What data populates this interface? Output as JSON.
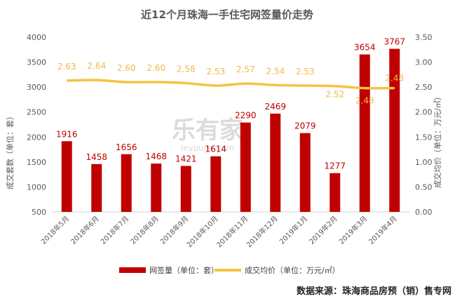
{
  "chart_data": {
    "type": "bar+line",
    "title": "近12个月珠海一手住宅网签量价走势",
    "categories": [
      "2018年5月",
      "2018年6月",
      "2018年7月",
      "2018年8月",
      "2018年9月",
      "2018年10月",
      "2018年11月",
      "2018年12月",
      "2019年1月",
      "2019年2月",
      "2019年3月",
      "2019年4月"
    ],
    "series": [
      {
        "name": "网签量（单位：套）",
        "type": "bar",
        "axis": "left",
        "color": "#c00000",
        "values": [
          1916,
          1458,
          1656,
          1468,
          1421,
          1614,
          2290,
          2469,
          2079,
          1277,
          3654,
          3767
        ]
      },
      {
        "name": "成交均价（单位：万元/㎡）",
        "type": "line",
        "axis": "right",
        "color": "#f5c242",
        "values": [
          2.63,
          2.64,
          2.6,
          2.6,
          2.58,
          2.53,
          2.57,
          2.54,
          2.53,
          2.52,
          2.48,
          2.48
        ]
      }
    ],
    "ylabel_left": "成交套数（单位：套）",
    "ylabel_right": "成交均价（单位：万元/㎡）",
    "ylim_left": [
      500,
      4000
    ],
    "yticks_left": [
      500,
      1000,
      1500,
      2000,
      2500,
      3000,
      3500,
      4000
    ],
    "ylim_right": [
      0,
      3.5
    ],
    "yticks_right": [
      "0.00",
      "0.50",
      "1.00",
      "1.50",
      "2.00",
      "2.50",
      "3.00",
      "3.50"
    ],
    "price_labels": [
      "2.63",
      "2.64",
      "2.60",
      "2.60",
      "2.58",
      "2.53",
      "2.57",
      "2.54",
      "2.53",
      "2.52",
      "2.48",
      "2.48"
    ],
    "grid": false,
    "legend_position": "bottom"
  },
  "watermark": "乐有家",
  "footer": "数据来源：珠海商品房预（销）售专网"
}
